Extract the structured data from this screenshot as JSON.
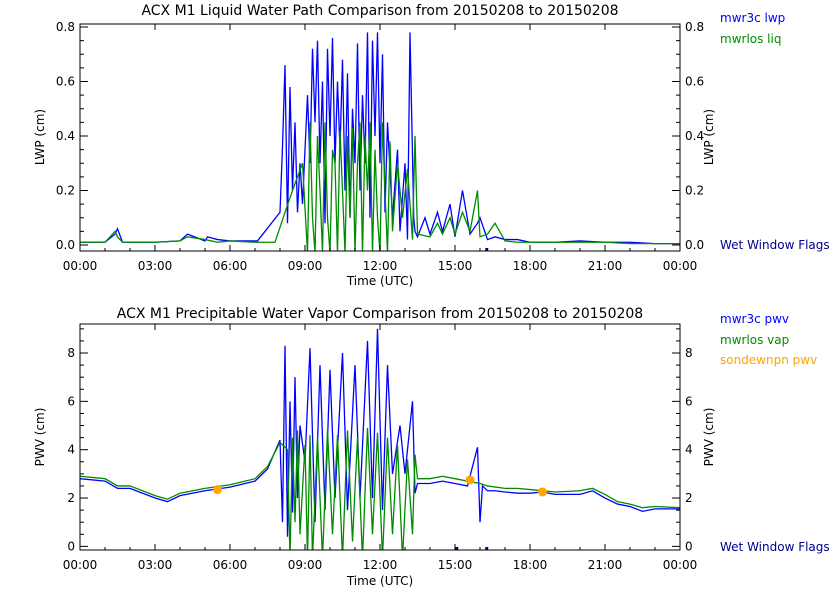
{
  "chart_data": [
    {
      "type": "line",
      "title": "ACX M1 Liquid Water Path Comparison from 20150208 to 20150208",
      "xlabel": "Time (UTC)",
      "ylabel": "LWP (cm)",
      "ylabel_right": "LWP (cm)",
      "xlim": [
        0,
        24
      ],
      "ylim": [
        -0.022,
        0.811
      ],
      "xticks": [
        "00:00",
        "03:00",
        "06:00",
        "09:00",
        "12:00",
        "15:00",
        "18:00",
        "21:00",
        "00:00"
      ],
      "yticks": [
        0,
        0.2,
        0.4,
        0.6,
        0.8
      ],
      "ytick_labels": [
        "0.0",
        "0.2",
        "0.4",
        "0.6",
        "0.8"
      ],
      "legend": "right",
      "flag_label": "Wet Window Flags",
      "flags_hours": [
        16.25
      ],
      "series": [
        {
          "name": "mwr3c lwp",
          "color": "#0000ff",
          "x": [
            0,
            1,
            1.4,
            1.5,
            1.7,
            2,
            3,
            4,
            4.3,
            5,
            5.1,
            5.5,
            6,
            7.1,
            8,
            8.1,
            8.2,
            8.3,
            8.4,
            8.5,
            8.6,
            8.7,
            8.8,
            8.9,
            9.1,
            9.2,
            9.3,
            9.4,
            9.5,
            9.6,
            9.7,
            9.8,
            9.9,
            10,
            10.1,
            10.2,
            10.3,
            10.4,
            10.5,
            10.6,
            10.7,
            10.8,
            10.9,
            11,
            11.1,
            11.2,
            11.3,
            11.4,
            11.5,
            11.6,
            11.7,
            11.8,
            11.9,
            12,
            12.1,
            12.2,
            12.3,
            12.5,
            12.7,
            12.8,
            13,
            13.1,
            13.2,
            13.35,
            13.4,
            13.5,
            13.8,
            14,
            14.3,
            14.5,
            14.8,
            15,
            15.3,
            15.6,
            15.9,
            16,
            16.3,
            16.6,
            17,
            17.5,
            18,
            19,
            20,
            21,
            22,
            23,
            24
          ],
          "y": [
            0.01,
            0.01,
            0.04,
            0.06,
            0.01,
            0.01,
            0.01,
            0.015,
            0.04,
            0.015,
            0.03,
            0.02,
            0.015,
            0.015,
            0.12,
            0.36,
            0.66,
            0.08,
            0.58,
            0.2,
            0.45,
            0.12,
            0.3,
            0.15,
            0.55,
            0.3,
            0.72,
            0.45,
            0.75,
            0.3,
            0.6,
            0.08,
            0.72,
            0.4,
            0.76,
            0.3,
            0.6,
            0.35,
            0.68,
            0.2,
            0.63,
            0.1,
            0.5,
            0.3,
            0.74,
            0.2,
            0.55,
            0.3,
            0.78,
            0.1,
            0.75,
            0.4,
            0.78,
            0.3,
            0.7,
            0.12,
            0.45,
            0.1,
            0.35,
            0.05,
            0.3,
            0.02,
            0.78,
            0.1,
            0.05,
            0.03,
            0.1,
            0.04,
            0.12,
            0.05,
            0.15,
            0.03,
            0.2,
            0.04,
            0.08,
            0.1,
            0.02,
            0.03,
            0.02,
            0.02,
            0.01,
            0.01,
            0.015,
            0.01,
            0.01,
            0.005,
            0.005
          ]
        },
        {
          "name": "mwrlos liq",
          "color": "#008c00",
          "x": [
            0,
            1,
            1.4,
            1.5,
            1.7,
            2,
            3,
            4,
            4.3,
            5,
            5.5,
            6,
            7,
            7.8,
            8.2,
            8.5,
            8.9,
            9.1,
            9.2,
            9.3,
            9.4,
            9.5,
            9.6,
            9.7,
            9.8,
            9.9,
            10,
            10.1,
            10.2,
            10.3,
            10.4,
            10.5,
            10.6,
            10.7,
            10.8,
            10.9,
            11,
            11.1,
            11.2,
            11.3,
            11.4,
            11.5,
            11.6,
            11.7,
            11.8,
            11.9,
            12,
            12.1,
            12.2,
            12.3,
            12.4,
            12.5,
            12.7,
            12.9,
            13.1,
            13.3,
            13.4,
            13.5,
            14,
            14.3,
            14.5,
            14.8,
            15,
            15.3,
            15.6,
            15.9,
            16,
            16.3,
            16.6,
            17,
            17.5,
            18,
            19,
            20,
            21,
            22,
            23,
            24
          ],
          "y": [
            0.01,
            0.01,
            0.05,
            0.03,
            0.01,
            0.01,
            0.01,
            0.015,
            0.03,
            0.02,
            0.01,
            0.015,
            0.01,
            0.01,
            0.12,
            0.2,
            0.3,
            -0.03,
            0.45,
            0.1,
            -0.03,
            0.4,
            0.2,
            -0.03,
            0.45,
            0.1,
            -0.03,
            0.35,
            0.3,
            -0.03,
            0.42,
            0.2,
            -0.03,
            0.4,
            0.1,
            0.43,
            -0.03,
            0.3,
            0.45,
            -0.03,
            0.4,
            0.2,
            0.45,
            -0.03,
            0.35,
            0.1,
            -0.03,
            0.45,
            0.2,
            -0.03,
            0.38,
            0.05,
            0.3,
            0.1,
            0.28,
            0.02,
            0.4,
            0.04,
            0.03,
            0.08,
            0.04,
            0.1,
            0.04,
            0.12,
            0.05,
            0.2,
            0.03,
            0.04,
            0.08,
            0.015,
            0.01,
            0.01,
            0.01,
            0.01,
            0.01,
            0.005,
            0.005,
            0.005
          ]
        }
      ]
    },
    {
      "type": "line",
      "title": "ACX M1 Precipitable Water Vapor Comparison from 20150208 to 20150208",
      "xlabel": "Time (UTC)",
      "ylabel": "PWV (cm)",
      "ylabel_right": "PWV (cm)",
      "xlim": [
        0,
        24
      ],
      "ylim": [
        -0.15,
        9.2
      ],
      "xticks": [
        "00:00",
        "03:00",
        "06:00",
        "09:00",
        "12:00",
        "15:00",
        "18:00",
        "21:00",
        "00:00"
      ],
      "yticks": [
        0,
        2,
        4,
        6,
        8
      ],
      "ytick_labels": [
        "0",
        "2",
        "4",
        "6",
        "8"
      ],
      "legend": "right",
      "flag_label": "Wet Window Flags",
      "flags_hours": [
        15.05,
        16.25
      ],
      "series": [
        {
          "name": "mwr3c pwv",
          "color": "#0000ff",
          "x": [
            0,
            1,
            1.5,
            2,
            3,
            3.5,
            4,
            5,
            6,
            7,
            7.5,
            8,
            8.1,
            8.2,
            8.3,
            8.4,
            8.5,
            8.6,
            8.7,
            8.8,
            9,
            9.2,
            9.4,
            9.6,
            9.8,
            10,
            10.2,
            10.5,
            10.7,
            11,
            11.2,
            11.5,
            11.7,
            11.9,
            12.1,
            12.3,
            12.5,
            12.8,
            13,
            13.3,
            13.4,
            13.5,
            14,
            14.5,
            15,
            15.5,
            15.9,
            16,
            16.1,
            16.3,
            16.6,
            17,
            17.5,
            18,
            18.5,
            19,
            20,
            20.5,
            21,
            21.5,
            22,
            22.5,
            23,
            24
          ],
          "y": [
            2.8,
            2.7,
            2.4,
            2.4,
            2.0,
            1.85,
            2.1,
            2.3,
            2.45,
            2.7,
            3.2,
            4.4,
            1.0,
            8.3,
            0.4,
            6.0,
            1.4,
            7.0,
            2.0,
            5.0,
            3.5,
            8.2,
            1.0,
            7.5,
            1.5,
            7.3,
            2.0,
            8.0,
            1.5,
            7.5,
            2.0,
            8.5,
            2.0,
            9.0,
            1.5,
            7.5,
            3.0,
            5.0,
            3.0,
            6.0,
            2.2,
            2.6,
            2.6,
            2.7,
            2.6,
            2.5,
            4.1,
            1.0,
            2.5,
            2.3,
            2.3,
            2.25,
            2.2,
            2.2,
            2.25,
            2.15,
            2.15,
            2.3,
            2.0,
            1.75,
            1.65,
            1.45,
            1.55,
            1.55
          ]
        },
        {
          "name": "mwrlos vap",
          "color": "#008c00",
          "x": [
            0,
            1,
            1.5,
            2,
            3,
            3.5,
            4,
            5,
            6,
            7,
            7.5,
            8,
            8.3,
            8.4,
            8.5,
            8.6,
            8.7,
            8.8,
            9,
            9.1,
            9.2,
            9.3,
            9.5,
            9.7,
            9.9,
            10.1,
            10.3,
            10.5,
            10.7,
            10.9,
            11.1,
            11.3,
            11.5,
            11.7,
            11.9,
            12.1,
            12.3,
            12.5,
            12.7,
            12.9,
            13.1,
            13.3,
            13.4,
            13.5,
            14,
            14.5,
            15,
            15.5,
            16,
            16.3,
            17,
            17.5,
            18,
            19,
            20,
            20.5,
            21,
            21.5,
            22,
            22.5,
            23,
            24
          ],
          "y": [
            2.9,
            2.8,
            2.5,
            2.5,
            2.1,
            1.95,
            2.2,
            2.4,
            2.55,
            2.8,
            3.3,
            4.3,
            4.0,
            -0.5,
            4.5,
            1.0,
            4.8,
            0.5,
            4.2,
            -0.5,
            4.6,
            -0.5,
            4.5,
            -0.5,
            4.8,
            0.5,
            4.6,
            -0.5,
            4.8,
            0.2,
            4.5,
            -0.5,
            4.9,
            0.5,
            4.7,
            -0.5,
            4.5,
            0.5,
            4.2,
            -0.5,
            3.6,
            0.5,
            3.8,
            2.8,
            2.8,
            2.9,
            2.8,
            2.7,
            2.6,
            2.5,
            2.4,
            2.4,
            2.35,
            2.25,
            2.3,
            2.4,
            2.15,
            1.85,
            1.75,
            1.6,
            1.65,
            1.6
          ]
        },
        {
          "name": "sondewnpn pwv",
          "color": "#ffa500",
          "marker": "circle",
          "x": [
            5.5,
            15.6,
            18.5
          ],
          "y": [
            2.35,
            2.75,
            2.25
          ]
        }
      ]
    }
  ]
}
